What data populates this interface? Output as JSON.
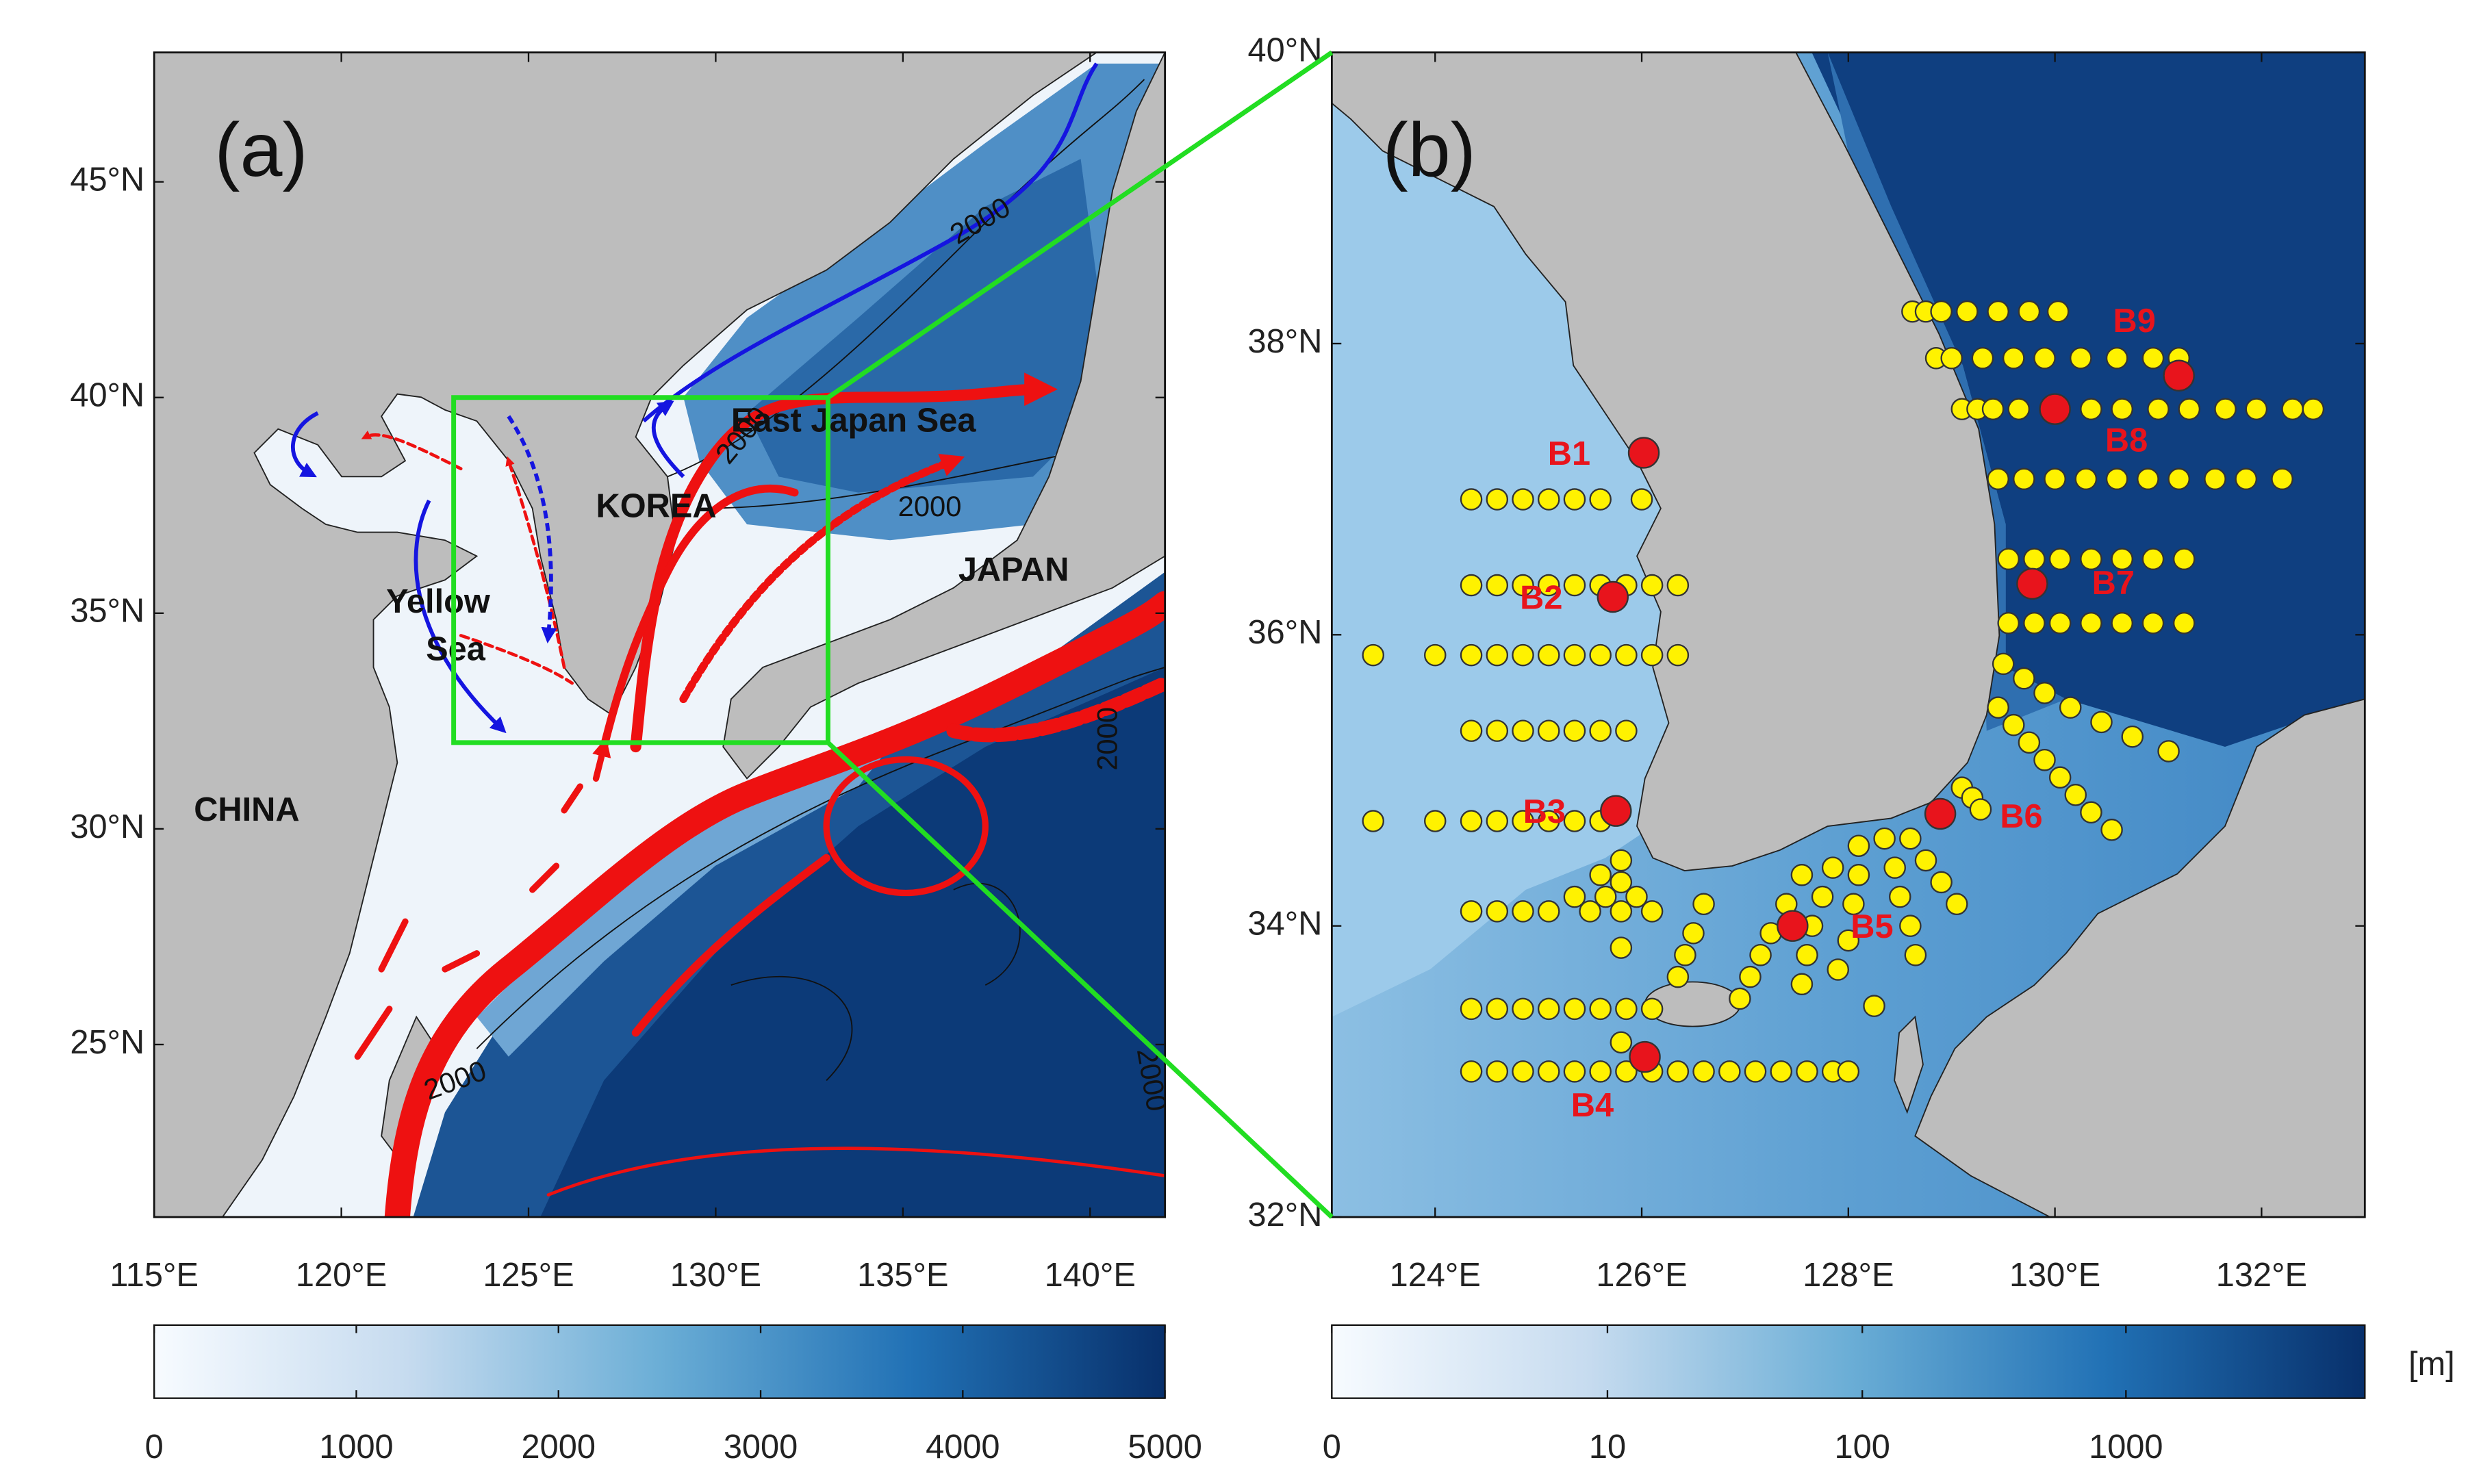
{
  "panel_a": {
    "label": "(a)",
    "xlim": [
      115,
      142
    ],
    "ylim": [
      21,
      48
    ],
    "xticks": [
      {
        "value": 115,
        "label": "115°E"
      },
      {
        "value": 120,
        "label": "120°E"
      },
      {
        "value": 125,
        "label": "125°E"
      },
      {
        "value": 130,
        "label": "130°E"
      },
      {
        "value": 135,
        "label": "135°E"
      },
      {
        "value": 140,
        "label": "140°E"
      }
    ],
    "yticks": [
      {
        "value": 25,
        "label": "25°N"
      },
      {
        "value": 30,
        "label": "30°N"
      },
      {
        "value": 35,
        "label": "35°N"
      },
      {
        "value": 40,
        "label": "40°N"
      },
      {
        "value": 45,
        "label": "45°N"
      }
    ],
    "place_names": [
      "CHINA",
      "KOREA",
      "JAPAN",
      "Yellow",
      "Sea",
      "East Japan Sea"
    ],
    "contour_labels": [
      "2000",
      "2000",
      "2000",
      "2000",
      "2000",
      "2000"
    ],
    "colorbar": {
      "clim": [
        0,
        5000
      ],
      "ticks": [
        0,
        1000,
        2000,
        3000,
        4000,
        5000
      ],
      "colors": [
        "#f7fbff",
        "#c6dbef",
        "#6baed6",
        "#2171b5",
        "#08306b"
      ]
    }
  },
  "panel_b": {
    "label": "(b)",
    "xlim": [
      123,
      133
    ],
    "ylim": [
      32,
      40
    ],
    "xticks": [
      {
        "value": 124,
        "label": "124°E"
      },
      {
        "value": 126,
        "label": "126°E"
      },
      {
        "value": 128,
        "label": "128°E"
      },
      {
        "value": 130,
        "label": "130°E"
      },
      {
        "value": 132,
        "label": "132°E"
      }
    ],
    "yticks": [
      {
        "value": 32,
        "label": "32°N"
      },
      {
        "value": 34,
        "label": "34°N"
      },
      {
        "value": 36,
        "label": "36°N"
      },
      {
        "value": 38,
        "label": "38°N"
      },
      {
        "value": 40,
        "label": "40°N"
      }
    ],
    "zoom_color": "#22dd22",
    "station_color": "#e8141c",
    "stations": [
      {
        "name": "B1",
        "lon": 126.02,
        "lat": 37.25
      },
      {
        "name": "B2",
        "lon": 125.72,
        "lat": 36.26
      },
      {
        "name": "B3",
        "lon": 125.75,
        "lat": 34.79
      },
      {
        "name": "B4",
        "lon": 126.03,
        "lat": 33.1
      },
      {
        "name": "B5",
        "lon": 127.46,
        "lat": 34.0
      },
      {
        "name": "B6",
        "lon": 128.89,
        "lat": 34.77
      },
      {
        "name": "B7",
        "lon": 129.78,
        "lat": 36.35
      },
      {
        "name": "B8",
        "lon": 130.0,
        "lat": 37.55
      },
      {
        "name": "B9",
        "lon": 131.2,
        "lat": 37.78
      }
    ],
    "survey_points": {
      "color": "#fff200",
      "points": [
        [
          124.35,
          36.93
        ],
        [
          124.6,
          36.93
        ],
        [
          124.85,
          36.93
        ],
        [
          125.1,
          36.93
        ],
        [
          125.35,
          36.93
        ],
        [
          125.6,
          36.93
        ],
        [
          126.0,
          36.93
        ],
        [
          124.35,
          36.34
        ],
        [
          124.6,
          36.34
        ],
        [
          124.85,
          36.34
        ],
        [
          125.1,
          36.34
        ],
        [
          125.35,
          36.34
        ],
        [
          125.6,
          36.34
        ],
        [
          125.85,
          36.34
        ],
        [
          126.1,
          36.34
        ],
        [
          126.35,
          36.34
        ],
        [
          123.4,
          35.86
        ],
        [
          124.0,
          35.86
        ],
        [
          124.35,
          35.86
        ],
        [
          124.6,
          35.86
        ],
        [
          124.85,
          35.86
        ],
        [
          125.1,
          35.86
        ],
        [
          125.35,
          35.86
        ],
        [
          125.6,
          35.86
        ],
        [
          125.85,
          35.86
        ],
        [
          126.1,
          35.86
        ],
        [
          126.35,
          35.86
        ],
        [
          124.35,
          35.34
        ],
        [
          124.6,
          35.34
        ],
        [
          124.85,
          35.34
        ],
        [
          125.1,
          35.34
        ],
        [
          125.35,
          35.34
        ],
        [
          125.6,
          35.34
        ],
        [
          125.85,
          35.34
        ],
        [
          123.4,
          34.72
        ],
        [
          124.0,
          34.72
        ],
        [
          124.35,
          34.72
        ],
        [
          124.6,
          34.72
        ],
        [
          124.85,
          34.72
        ],
        [
          125.1,
          34.72
        ],
        [
          125.35,
          34.72
        ],
        [
          125.6,
          34.72
        ],
        [
          124.35,
          34.1
        ],
        [
          124.6,
          34.1
        ],
        [
          124.85,
          34.1
        ],
        [
          125.1,
          34.1
        ],
        [
          125.35,
          34.2
        ],
        [
          125.5,
          34.1
        ],
        [
          125.65,
          34.2
        ],
        [
          125.8,
          34.1
        ],
        [
          125.95,
          34.2
        ],
        [
          126.1,
          34.1
        ],
        [
          125.8,
          34.45
        ],
        [
          125.8,
          34.3
        ],
        [
          125.6,
          34.35
        ],
        [
          125.8,
          33.85
        ],
        [
          124.35,
          33.43
        ],
        [
          124.6,
          33.43
        ],
        [
          124.85,
          33.43
        ],
        [
          125.1,
          33.43
        ],
        [
          125.35,
          33.43
        ],
        [
          125.6,
          33.43
        ],
        [
          125.85,
          33.43
        ],
        [
          126.1,
          33.43
        ],
        [
          124.35,
          33.0
        ],
        [
          124.6,
          33.0
        ],
        [
          124.85,
          33.0
        ],
        [
          125.1,
          33.0
        ],
        [
          125.35,
          33.0
        ],
        [
          125.6,
          33.0
        ],
        [
          125.85,
          33.0
        ],
        [
          126.1,
          33.0
        ],
        [
          126.35,
          33.0
        ],
        [
          126.6,
          33.0
        ],
        [
          126.85,
          33.0
        ],
        [
          127.1,
          33.0
        ],
        [
          127.35,
          33.0
        ],
        [
          127.6,
          33.0
        ],
        [
          127.85,
          33.0
        ],
        [
          128.0,
          33.0
        ],
        [
          125.8,
          33.2
        ],
        [
          126.6,
          34.15
        ],
        [
          126.5,
          33.95
        ],
        [
          126.42,
          33.8
        ],
        [
          126.35,
          33.65
        ],
        [
          127.55,
          34.35
        ],
        [
          127.4,
          34.15
        ],
        [
          127.25,
          33.95
        ],
        [
          127.15,
          33.8
        ],
        [
          127.05,
          33.65
        ],
        [
          126.95,
          33.5
        ],
        [
          127.85,
          34.4
        ],
        [
          127.75,
          34.2
        ],
        [
          127.65,
          34.0
        ],
        [
          127.6,
          33.8
        ],
        [
          127.55,
          33.6
        ],
        [
          128.1,
          34.55
        ],
        [
          128.1,
          34.35
        ],
        [
          128.05,
          34.15
        ],
        [
          128.0,
          33.9
        ],
        [
          127.9,
          33.7
        ],
        [
          128.35,
          34.6
        ],
        [
          128.45,
          34.4
        ],
        [
          128.5,
          34.2
        ],
        [
          128.6,
          34.0
        ],
        [
          128.65,
          33.8
        ],
        [
          128.6,
          34.6
        ],
        [
          128.75,
          34.45
        ],
        [
          128.9,
          34.3
        ],
        [
          129.05,
          34.15
        ],
        [
          128.25,
          33.45
        ],
        [
          129.1,
          34.95
        ],
        [
          129.2,
          34.88
        ],
        [
          129.28,
          34.8
        ],
        [
          128.62,
          38.22
        ],
        [
          128.75,
          38.22
        ],
        [
          128.9,
          38.22
        ],
        [
          129.15,
          38.22
        ],
        [
          129.45,
          38.22
        ],
        [
          129.75,
          38.22
        ],
        [
          130.03,
          38.22
        ],
        [
          128.85,
          37.9
        ],
        [
          129.0,
          37.9
        ],
        [
          129.3,
          37.9
        ],
        [
          129.6,
          37.9
        ],
        [
          129.9,
          37.9
        ],
        [
          130.25,
          37.9
        ],
        [
          130.6,
          37.9
        ],
        [
          130.95,
          37.9
        ],
        [
          131.2,
          37.9
        ],
        [
          129.1,
          37.55
        ],
        [
          129.25,
          37.55
        ],
        [
          129.4,
          37.55
        ],
        [
          129.65,
          37.55
        ],
        [
          130.35,
          37.55
        ],
        [
          130.65,
          37.55
        ],
        [
          131.0,
          37.55
        ],
        [
          131.3,
          37.55
        ],
        [
          131.65,
          37.55
        ],
        [
          131.95,
          37.55
        ],
        [
          132.3,
          37.55
        ],
        [
          132.5,
          37.55
        ],
        [
          129.45,
          37.07
        ],
        [
          129.7,
          37.07
        ],
        [
          130.0,
          37.07
        ],
        [
          130.3,
          37.07
        ],
        [
          130.6,
          37.07
        ],
        [
          130.9,
          37.07
        ],
        [
          131.2,
          37.07
        ],
        [
          131.55,
          37.07
        ],
        [
          131.85,
          37.07
        ],
        [
          132.2,
          37.07
        ],
        [
          129.55,
          36.52
        ],
        [
          129.8,
          36.52
        ],
        [
          130.05,
          36.52
        ],
        [
          130.35,
          36.52
        ],
        [
          130.65,
          36.52
        ],
        [
          130.95,
          36.52
        ],
        [
          131.25,
          36.52
        ],
        [
          129.55,
          36.08
        ],
        [
          129.8,
          36.08
        ],
        [
          130.05,
          36.08
        ],
        [
          130.35,
          36.08
        ],
        [
          130.65,
          36.08
        ],
        [
          130.95,
          36.08
        ],
        [
          131.25,
          36.08
        ],
        [
          129.5,
          35.8
        ],
        [
          129.7,
          35.7
        ],
        [
          129.9,
          35.6
        ],
        [
          130.15,
          35.5
        ],
        [
          130.45,
          35.4
        ],
        [
          130.75,
          35.3
        ],
        [
          131.1,
          35.2
        ],
        [
          129.45,
          35.5
        ],
        [
          129.6,
          35.38
        ],
        [
          129.75,
          35.26
        ],
        [
          129.9,
          35.14
        ],
        [
          130.05,
          35.02
        ],
        [
          130.2,
          34.9
        ],
        [
          130.35,
          34.78
        ],
        [
          130.55,
          34.66
        ]
      ]
    },
    "colorbar": {
      "clim": [
        0,
        8000
      ],
      "scale": "log1p",
      "ticks": [
        0,
        10,
        100,
        1000
      ],
      "unit": "[m]",
      "colors": [
        "#f7fbff",
        "#c6dbef",
        "#6baed6",
        "#2171b5",
        "#08306b"
      ]
    }
  }
}
